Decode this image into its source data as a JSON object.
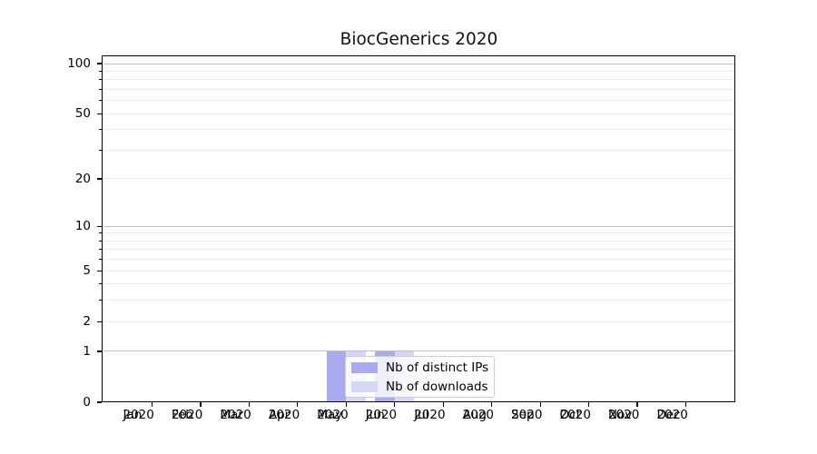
{
  "chart_data": {
    "type": "bar",
    "title": "BiocGenerics 2020",
    "categories": [
      "Jan",
      "Feb",
      "Mar",
      "Apr",
      "May",
      "Jun",
      "Jul",
      "Aug",
      "Sep",
      "Oct",
      "Nov",
      "Dec"
    ],
    "x_year": "2020",
    "series": [
      {
        "name": "Nb of distinct IPs",
        "color": "#aaaaee",
        "values": [
          0,
          0,
          0,
          0,
          1,
          1,
          0,
          0,
          0,
          0,
          0,
          0
        ]
      },
      {
        "name": "Nb of downloads",
        "color": "#d6d6f5",
        "values": [
          0,
          0,
          0,
          0,
          1,
          1,
          0,
          0,
          0,
          0,
          0,
          0
        ]
      }
    ],
    "y_axis": {
      "scale": "log1p",
      "tick_values": [
        0,
        1,
        2,
        5,
        10,
        20,
        50,
        100
      ],
      "major_grid_values": [
        1,
        10,
        100
      ],
      "minor_grid_values": [
        2,
        3,
        4,
        5,
        6,
        7,
        8,
        9,
        20,
        30,
        40,
        50,
        60,
        70,
        80,
        90
      ],
      "range_top_value": 110
    },
    "grid": true,
    "legend_position": "lower center",
    "colors": {
      "spine": "#000000",
      "grid_major": "#bdbdbd",
      "grid_minor": "#ebebeb",
      "text": "#000000",
      "legend_border": "#cccccc",
      "background": "#ffffff"
    }
  }
}
